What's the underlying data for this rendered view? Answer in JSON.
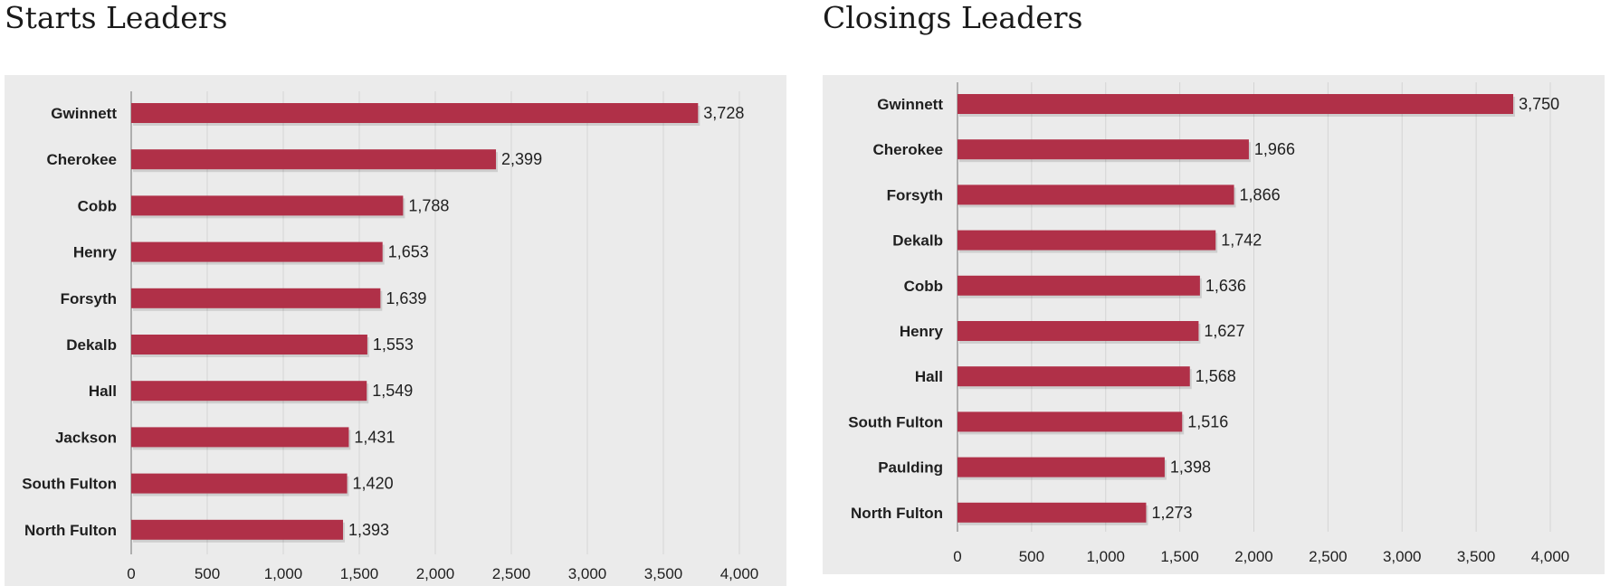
{
  "chart_data": [
    {
      "type": "bar",
      "orientation": "horizontal",
      "title": "Starts Leaders",
      "categories": [
        "Gwinnett",
        "Cherokee",
        "Cobb",
        "Henry",
        "Forsyth",
        "Dekalb",
        "Hall",
        "Jackson",
        "South Fulton",
        "North Fulton"
      ],
      "values": [
        3728,
        2399,
        1788,
        1653,
        1639,
        1553,
        1549,
        1431,
        1420,
        1393
      ],
      "value_labels": [
        "3,728",
        "2,399",
        "1,788",
        "1,653",
        "1,639",
        "1,553",
        "1,549",
        "1,431",
        "1,420",
        "1,393"
      ],
      "xlim": [
        0,
        4000
      ],
      "ticks": [
        0,
        500,
        1000,
        1500,
        2000,
        2500,
        3000,
        3500,
        4000
      ],
      "tick_labels": [
        "0",
        "500",
        "1,000",
        "1,500",
        "2,000",
        "2,500",
        "3,000",
        "3,500",
        "4,000"
      ],
      "grid": true,
      "bar_color": "#b03048",
      "background_color": "#ebebeb",
      "grid_color": "#d4d4d4"
    },
    {
      "type": "bar",
      "orientation": "horizontal",
      "title": "Closings Leaders",
      "categories": [
        "Gwinnett",
        "Cherokee",
        "Forsyth",
        "Dekalb",
        "Cobb",
        "Henry",
        "Hall",
        "South Fulton",
        "Paulding",
        "North Fulton"
      ],
      "values": [
        3750,
        1966,
        1866,
        1742,
        1636,
        1627,
        1568,
        1516,
        1398,
        1273
      ],
      "value_labels": [
        "3,750",
        "1,966",
        "1,866",
        "1,742",
        "1,636",
        "1,627",
        "1,568",
        "1,516",
        "1,398",
        "1,273"
      ],
      "xlim": [
        0,
        4000
      ],
      "ticks": [
        0,
        500,
        1000,
        1500,
        2000,
        2500,
        3000,
        3500,
        4000
      ],
      "tick_labels": [
        "0",
        "500",
        "1,000",
        "1,500",
        "2,000",
        "2,500",
        "3,000",
        "3,500",
        "4,000"
      ],
      "grid": true,
      "bar_color": "#b03048",
      "background_color": "#ebebeb",
      "grid_color": "#d4d4d4"
    }
  ]
}
